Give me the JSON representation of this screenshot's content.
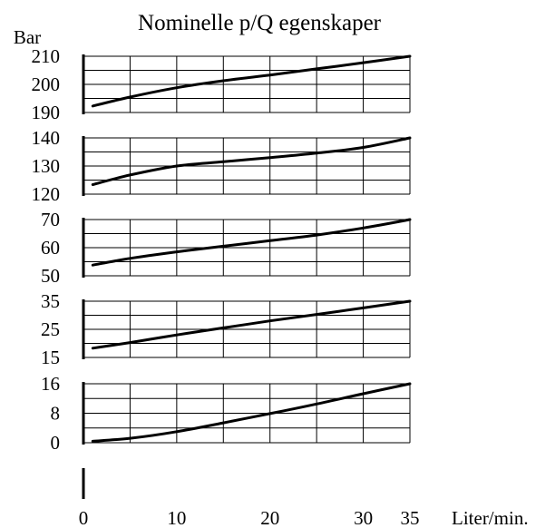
{
  "chart_title": "Nominelle p/Q egenskaper",
  "chart_data": {
    "type": "line",
    "title": "Nominelle p/Q egenskaper",
    "ylabel": "Bar",
    "xlabel": "Liter/min.",
    "grid": true,
    "x_ticks": [
      0,
      10,
      20,
      30,
      35
    ],
    "xlim": [
      0,
      35
    ],
    "panels": [
      {
        "ylim": [
          190,
          210
        ],
        "y_ticks": [
          190,
          200,
          210
        ],
        "series": [
          {
            "x": [
              1,
              5,
              10,
              15,
              20,
              25,
              30,
              35
            ],
            "y": [
              192.3,
              195.5,
              198.8,
              201.3,
              203.3,
              205.5,
              207.7,
              210
            ]
          }
        ]
      },
      {
        "ylim": [
          120,
          140
        ],
        "y_ticks": [
          120,
          130,
          140
        ],
        "series": [
          {
            "x": [
              1,
              5,
              10,
              15,
              20,
              25,
              30,
              35
            ],
            "y": [
              123.4,
              126.8,
              130,
              131.5,
              133,
              134.6,
              136.6,
              140
            ]
          }
        ]
      },
      {
        "ylim": [
          50,
          70
        ],
        "y_ticks": [
          50,
          60,
          70
        ],
        "series": [
          {
            "x": [
              1,
              5,
              10,
              15,
              20,
              25,
              30,
              35
            ],
            "y": [
              53.8,
              56.2,
              58.5,
              60.5,
              62.5,
              64.5,
              67,
              70
            ]
          }
        ]
      },
      {
        "ylim": [
          15,
          35
        ],
        "y_ticks": [
          15,
          25,
          35
        ],
        "series": [
          {
            "x": [
              1,
              5,
              10,
              15,
              20,
              25,
              30,
              35
            ],
            "y": [
              18.3,
              20.3,
              23,
              25.5,
              28,
              30.3,
              32.6,
              35
            ]
          }
        ]
      },
      {
        "ylim": [
          0,
          16
        ],
        "y_ticks": [
          0,
          8,
          16
        ],
        "series": [
          {
            "x": [
              1,
              5,
              10,
              15,
              20,
              25,
              30,
              35
            ],
            "y": [
              0.4,
              1.2,
              3,
              5.4,
              7.9,
              10.5,
              13.3,
              16
            ]
          }
        ]
      },
      {
        "ylim": null,
        "y_ticks": [],
        "series": []
      }
    ]
  }
}
